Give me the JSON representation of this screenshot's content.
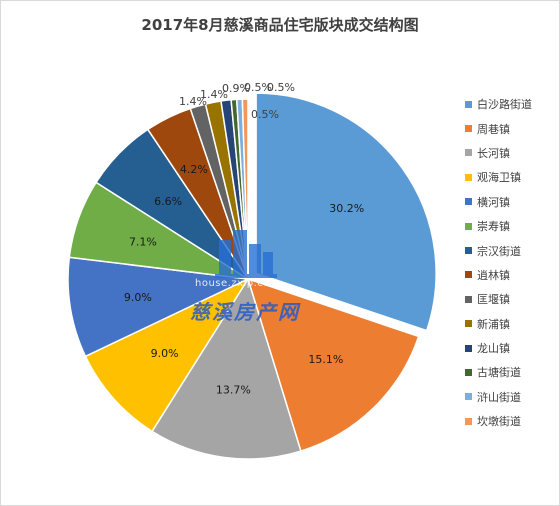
{
  "chart_data": {
    "type": "pie",
    "title": "2017年8月慈溪商品住宅版块成交结构图",
    "categories": [
      "白沙路街道",
      "周巷镇",
      "长河镇",
      "观海卫镇",
      "横河镇",
      "崇寿镇",
      "宗汉街道",
      "逍林镇",
      "匡堰镇",
      "新浦镇",
      "龙山镇",
      "古塘街道",
      "浒山街道",
      "坎墩街道"
    ],
    "values": [
      30.2,
      15.1,
      13.7,
      9.0,
      9.0,
      7.1,
      6.6,
      4.2,
      1.4,
      1.4,
      0.9,
      0.5,
      0.5,
      0.5
    ],
    "data_labels": [
      "30.2%",
      "15.1%",
      "13.7%",
      "9.0%",
      "9.0%",
      "7.1%",
      "6.6%",
      "4.2%",
      "1.4%",
      "1.4%",
      "0.9%",
      "0.5%",
      "0.5%",
      "0.5%"
    ],
    "colors": [
      "#5B9BD5",
      "#ED7D31",
      "#A5A5A5",
      "#FFC000",
      "#4472C4",
      "#70AD47",
      "#255E91",
      "#9E480E",
      "#636363",
      "#997300",
      "#264478",
      "#43682B",
      "#7CAFDD",
      "#F1975A"
    ],
    "exploded_slice": "白沙路街道",
    "legend_position": "right"
  },
  "watermark": {
    "url": "house.zxip.com",
    "brand": "慈溪房产网",
    "icon": "building-logo-icon"
  }
}
